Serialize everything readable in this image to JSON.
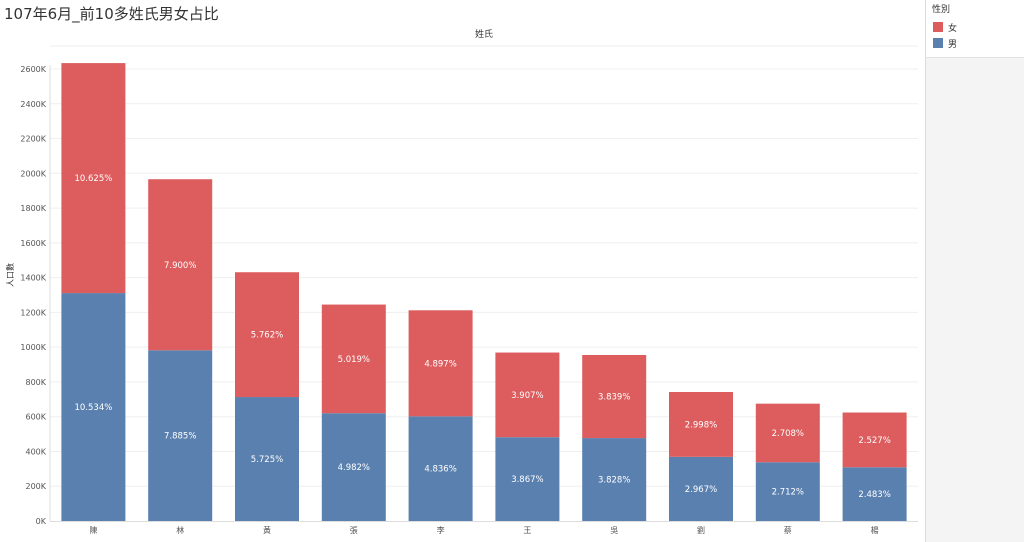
{
  "title": "107年6月_前10多姓氏男女占比",
  "legend": {
    "title": "性別",
    "items": [
      {
        "label": "女",
        "color": "#dd5d5e"
      },
      {
        "label": "男",
        "color": "#5a80b0"
      }
    ]
  },
  "chart_data": {
    "type": "bar",
    "stacked": true,
    "title": "姓氏",
    "xlabel": "姓氏",
    "ylabel": "人口數",
    "ylim": [
      0,
      2600000
    ],
    "yticks": [
      "0K",
      "200K",
      "400K",
      "600K",
      "800K",
      "1000K",
      "1200K",
      "1400K",
      "1600K",
      "1800K",
      "2000K",
      "2200K",
      "2400K",
      "2600K"
    ],
    "ytick_values": [
      0,
      200000,
      400000,
      600000,
      800000,
      1000000,
      1200000,
      1400000,
      1600000,
      1800000,
      2000000,
      2200000,
      2400000,
      2600000
    ],
    "categories": [
      "陳",
      "林",
      "黃",
      "張",
      "李",
      "王",
      "吳",
      "劉",
      "蔡",
      "楊"
    ],
    "series": [
      {
        "name": "男",
        "color": "#5a80b0",
        "values": [
          1311000,
          982000,
          713000,
          620000,
          602000,
          482000,
          477000,
          369000,
          338000,
          309000
        ],
        "labels": [
          "10.534%",
          "7.885%",
          "5.725%",
          "4.982%",
          "4.836%",
          "3.867%",
          "3.828%",
          "2.967%",
          "2.712%",
          "2.483%"
        ]
      },
      {
        "name": "女",
        "color": "#dd5d5e",
        "values": [
          1323000,
          984000,
          718000,
          625000,
          610000,
          487000,
          478000,
          373000,
          337000,
          315000
        ],
        "labels": [
          "10.625%",
          "7.900%",
          "5.762%",
          "5.019%",
          "4.897%",
          "3.907%",
          "3.839%",
          "2.998%",
          "2.708%",
          "2.527%"
        ]
      }
    ]
  }
}
